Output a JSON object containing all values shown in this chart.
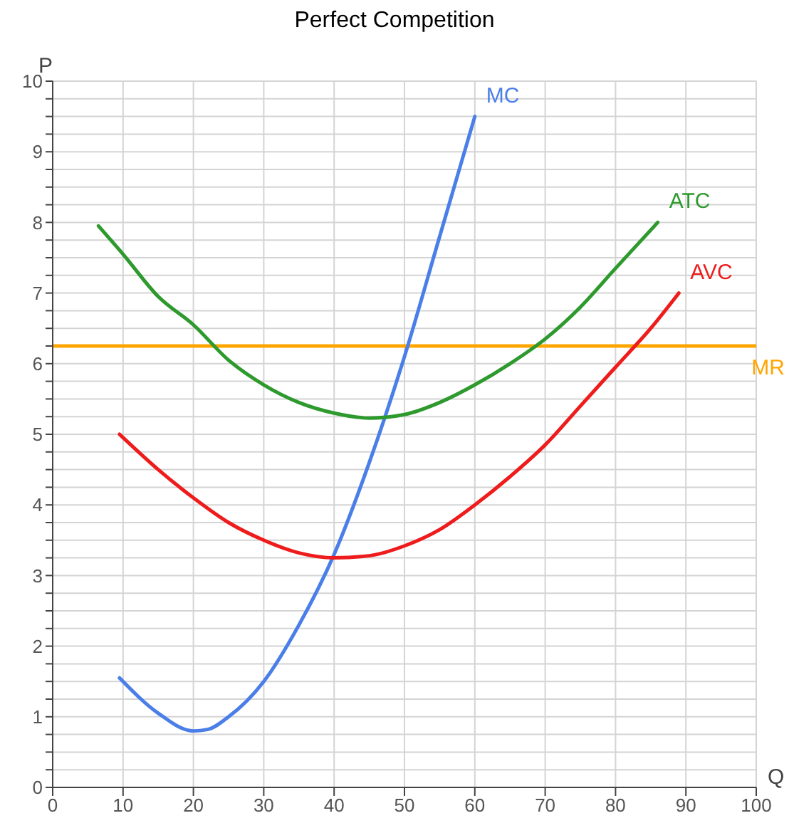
{
  "chart_data": {
    "type": "line",
    "title": "Perfect Competition",
    "xlabel": "Q",
    "ylabel": "P",
    "xlim": [
      0,
      100
    ],
    "xticks": [
      0,
      10,
      20,
      30,
      40,
      50,
      60,
      70,
      80,
      90,
      100
    ],
    "ylim": [
      0,
      10
    ],
    "yticks": [
      0,
      {
        "value": 0.25,
        "label": null
      },
      {
        "value": 0.5,
        "label": null
      },
      {
        "value": 0.75,
        "label": null
      },
      1,
      {
        "value": 1.25,
        "label": null
      },
      {
        "value": 1.5,
        "label": null
      },
      {
        "value": 1.75,
        "label": null
      },
      2,
      {
        "value": 2.25,
        "label": null
      },
      {
        "value": 2.5,
        "label": null
      },
      {
        "value": 2.75,
        "label": null
      },
      3,
      {
        "value": 3.25,
        "label": null
      },
      {
        "value": 3.5,
        "label": null
      },
      {
        "value": 3.75,
        "label": null
      },
      4,
      {
        "value": 4.25,
        "label": null
      },
      {
        "value": 4.5,
        "label": null
      },
      {
        "value": 4.75,
        "label": null
      },
      5,
      {
        "value": 5.25,
        "label": null
      },
      {
        "value": 5.5,
        "label": null
      },
      {
        "value": 5.75,
        "label": null
      },
      6,
      {
        "value": 6.25,
        "label": null
      },
      {
        "value": 6.5,
        "label": null
      },
      {
        "value": 6.75,
        "label": null
      },
      7,
      {
        "value": 7.25,
        "label": null
      },
      {
        "value": 7.5,
        "label": null
      },
      {
        "value": 7.75,
        "label": null
      },
      8,
      {
        "value": 8.25,
        "label": null
      },
      {
        "value": 8.5,
        "label": null
      },
      {
        "value": 8.75,
        "label": null
      },
      9,
      {
        "value": 9.25,
        "label": null
      },
      {
        "value": 9.5,
        "label": null
      },
      {
        "value": 9.75,
        "label": null
      },
      10
    ],
    "grid": true,
    "legend": false,
    "marker": "none",
    "line_style": "solid",
    "series": [
      {
        "name": "MC",
        "color": "#4a7ee8",
        "x": [
          9.5,
          15,
          20,
          22,
          25,
          30,
          35,
          40,
          45,
          50,
          55,
          60
        ],
        "values": [
          1.55,
          1.05,
          0.8,
          0.82,
          1.0,
          1.5,
          2.3,
          3.3,
          4.6,
          6.1,
          7.8,
          9.5
        ]
      },
      {
        "name": "ATC",
        "color": "#2e9a2e",
        "x": [
          6.5,
          10,
          15,
          20,
          25,
          30,
          35,
          40,
          45,
          50,
          55,
          60,
          65,
          70,
          75,
          80,
          86
        ],
        "values": [
          7.95,
          7.55,
          6.95,
          6.55,
          6.05,
          5.7,
          5.45,
          5.3,
          5.23,
          5.28,
          5.45,
          5.7,
          6.0,
          6.35,
          6.8,
          7.35,
          8.0
        ]
      },
      {
        "name": "AVC",
        "color": "#ee1c1c",
        "x": [
          9.5,
          15,
          20,
          25,
          30,
          35,
          40,
          45,
          50,
          55,
          60,
          65,
          70,
          75,
          80,
          85,
          89
        ],
        "values": [
          5.0,
          4.5,
          4.1,
          3.75,
          3.5,
          3.32,
          3.25,
          3.28,
          3.42,
          3.65,
          4.0,
          4.4,
          4.85,
          5.4,
          5.95,
          6.5,
          7.0
        ]
      }
    ],
    "ref_lines": [
      {
        "axis": "y",
        "value": 6.25,
        "label": "MR",
        "color": "#ffa500"
      }
    ]
  }
}
